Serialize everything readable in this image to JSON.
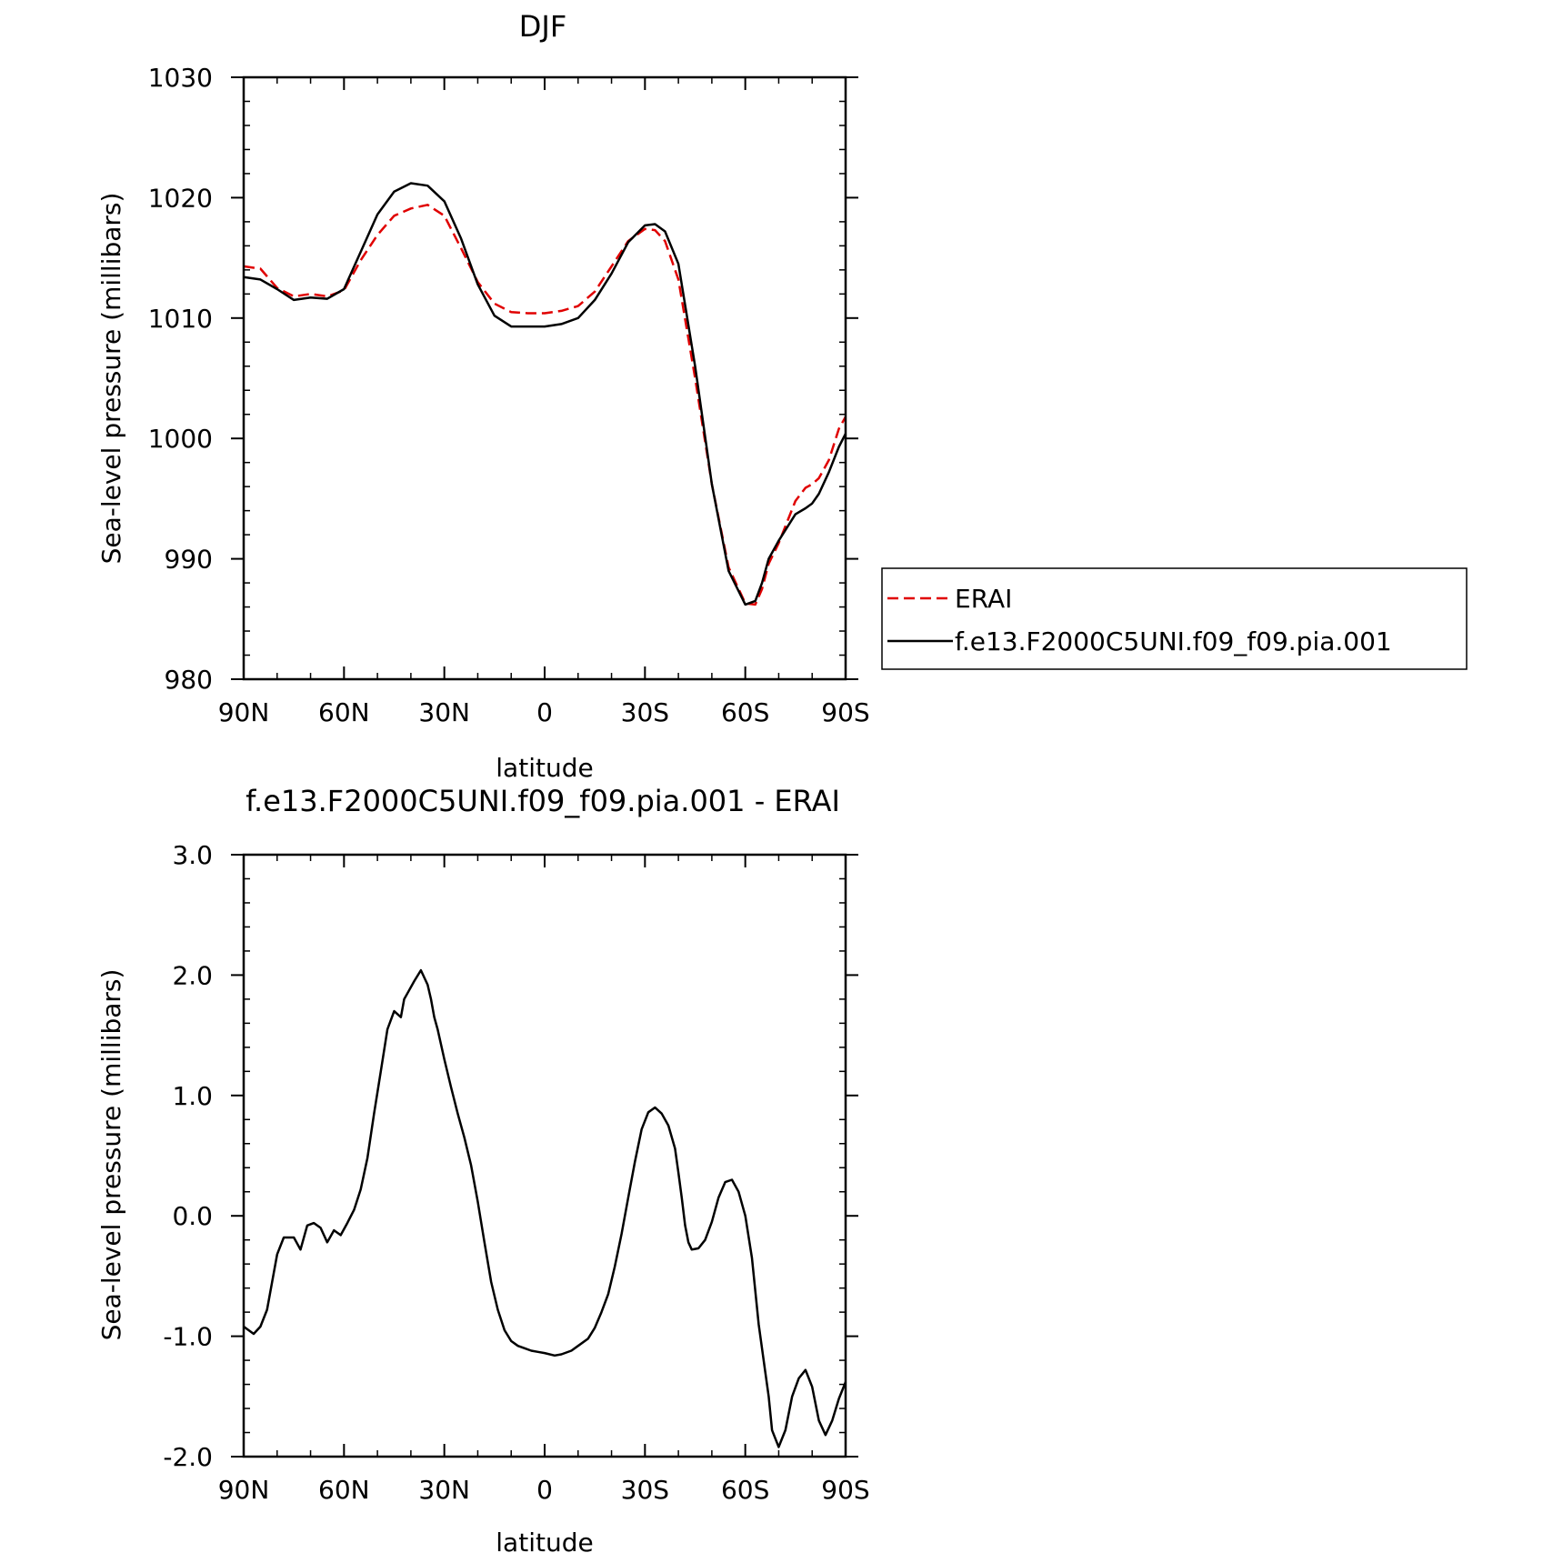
{
  "chart_data": [
    {
      "type": "line",
      "title": "DJF",
      "xlabel": "latitude",
      "ylabel": "Sea-level pressure (millibars)",
      "xlim": [
        90,
        -90
      ],
      "ylim": [
        980,
        1030
      ],
      "x_ticks": [
        90,
        60,
        30,
        0,
        -30,
        -60,
        -90
      ],
      "x_tick_labels": [
        "90N",
        "60N",
        "30N",
        "0",
        "30S",
        "60S",
        "90S"
      ],
      "y_ticks": [
        980,
        990,
        1000,
        1010,
        1020,
        1030
      ],
      "y_tick_labels": [
        "980",
        "990",
        "1000",
        "1010",
        "1020",
        "1030"
      ],
      "legend": {
        "placement": "right"
      },
      "grid": false,
      "series": [
        {
          "name": "ERAI",
          "color": "#e00000",
          "dash": "dashed",
          "x": [
            90,
            85,
            80,
            75,
            70,
            65,
            60,
            55,
            50,
            45,
            40,
            35,
            30,
            25,
            20,
            15,
            10,
            5,
            0,
            -5,
            -10,
            -15,
            -20,
            -25,
            -30,
            -33,
            -36,
            -40,
            -45,
            -50,
            -55,
            -60,
            -63,
            -65,
            -67,
            -70,
            -75,
            -78,
            -80,
            -82,
            -85,
            -88,
            -90
          ],
          "y": [
            1014.3,
            1014.1,
            1012.5,
            1011.8,
            1012.0,
            1011.8,
            1012.3,
            1014.8,
            1016.9,
            1018.5,
            1019.1,
            1019.4,
            1018.5,
            1015.8,
            1013.0,
            1011.2,
            1010.5,
            1010.4,
            1010.4,
            1010.6,
            1011.0,
            1012.2,
            1014.3,
            1016.4,
            1017.4,
            1017.3,
            1016.4,
            1013.2,
            1005.0,
            996.2,
            989.3,
            986.3,
            986.2,
            987.5,
            989.6,
            991.3,
            994.8,
            995.9,
            996.2,
            996.7,
            998.2,
            1000.8,
            1001.8
          ]
        },
        {
          "name": "f.e13.F2000C5UNI.f09_f09.pia.001",
          "color": "#000000",
          "dash": "solid",
          "x": [
            90,
            85,
            80,
            75,
            70,
            65,
            60,
            55,
            50,
            45,
            40,
            35,
            30,
            25,
            20,
            15,
            10,
            5,
            0,
            -5,
            -10,
            -15,
            -20,
            -25,
            -30,
            -33,
            -36,
            -40,
            -45,
            -50,
            -55,
            -60,
            -63,
            -65,
            -67,
            -70,
            -75,
            -78,
            -80,
            -82,
            -85,
            -88,
            -90
          ],
          "y": [
            1013.4,
            1013.2,
            1012.4,
            1011.5,
            1011.7,
            1011.6,
            1012.4,
            1015.5,
            1018.6,
            1020.5,
            1021.2,
            1021.0,
            1019.7,
            1016.6,
            1012.8,
            1010.2,
            1009.3,
            1009.3,
            1009.3,
            1009.5,
            1010.0,
            1011.5,
            1013.7,
            1016.3,
            1017.7,
            1017.8,
            1017.2,
            1014.5,
            1006.0,
            996.2,
            989.0,
            986.2,
            986.5,
            988.0,
            990.0,
            991.5,
            993.7,
            994.2,
            994.6,
            995.4,
            997.2,
            999.3,
            1000.4
          ]
        }
      ]
    },
    {
      "type": "line",
      "title": "f.e13.F2000C5UNI.f09_f09.pia.001 - ERAI",
      "xlabel": "latitude",
      "ylabel": "Sea-level pressure (millibars)",
      "xlim": [
        90,
        -90
      ],
      "ylim": [
        -2.0,
        3.0
      ],
      "x_ticks": [
        90,
        60,
        30,
        0,
        -30,
        -60,
        -90
      ],
      "x_tick_labels": [
        "90N",
        "60N",
        "30N",
        "0",
        "30S",
        "60S",
        "90S"
      ],
      "y_ticks": [
        -2.0,
        -1.0,
        0.0,
        1.0,
        2.0,
        3.0
      ],
      "y_tick_labels": [
        "-2.0",
        "-1.0",
        "0.0",
        "1.0",
        "2.0",
        "3.0"
      ],
      "grid": false,
      "series": [
        {
          "color": "#000000",
          "dash": "solid",
          "x": [
            90,
            87,
            85,
            83,
            80,
            78,
            75,
            73,
            71,
            69,
            67,
            65,
            63,
            61,
            59,
            57,
            55,
            53,
            51,
            49,
            47,
            45,
            43,
            42,
            41,
            39,
            37,
            35,
            34,
            33,
            32,
            30,
            28,
            26,
            24,
            22,
            20,
            18,
            16,
            14,
            12,
            10,
            8,
            6,
            4,
            2,
            0,
            -3,
            -5,
            -8,
            -10,
            -13,
            -15,
            -17,
            -19,
            -21,
            -23,
            -25,
            -27,
            -29,
            -31,
            -33,
            -35,
            -37,
            -39,
            -40,
            -41,
            -42,
            -43,
            -44,
            -46,
            -48,
            -50,
            -52,
            -54,
            -56,
            -58,
            -60,
            -62,
            -64,
            -66,
            -67,
            -68,
            -70,
            -72,
            -74,
            -76,
            -78,
            -80,
            -82,
            -84,
            -86,
            -88,
            -90
          ],
          "y": [
            -0.92,
            -0.98,
            -0.92,
            -0.78,
            -0.32,
            -0.18,
            -0.18,
            -0.28,
            -0.08,
            -0.06,
            -0.1,
            -0.22,
            -0.12,
            -0.16,
            -0.06,
            0.05,
            0.22,
            0.48,
            0.85,
            1.2,
            1.55,
            1.7,
            1.65,
            1.8,
            1.85,
            1.95,
            2.04,
            1.92,
            1.8,
            1.65,
            1.55,
            1.3,
            1.07,
            0.85,
            0.65,
            0.42,
            0.12,
            -0.22,
            -0.55,
            -0.78,
            -0.95,
            -1.04,
            -1.08,
            -1.1,
            -1.12,
            -1.13,
            -1.14,
            -1.16,
            -1.15,
            -1.12,
            -1.08,
            -1.02,
            -0.93,
            -0.8,
            -0.65,
            -0.42,
            -0.15,
            0.15,
            0.45,
            0.72,
            0.86,
            0.9,
            0.85,
            0.75,
            0.56,
            0.36,
            0.15,
            -0.08,
            -0.22,
            -0.28,
            -0.27,
            -0.2,
            -0.05,
            0.15,
            0.28,
            0.3,
            0.2,
            0.0,
            -0.35,
            -0.9,
            -1.3,
            -1.5,
            -1.78,
            -1.92,
            -1.78,
            -1.5,
            -1.35,
            -1.28,
            -1.42,
            -1.7,
            -1.82,
            -1.7,
            -1.52,
            -1.38
          ]
        }
      ]
    }
  ]
}
